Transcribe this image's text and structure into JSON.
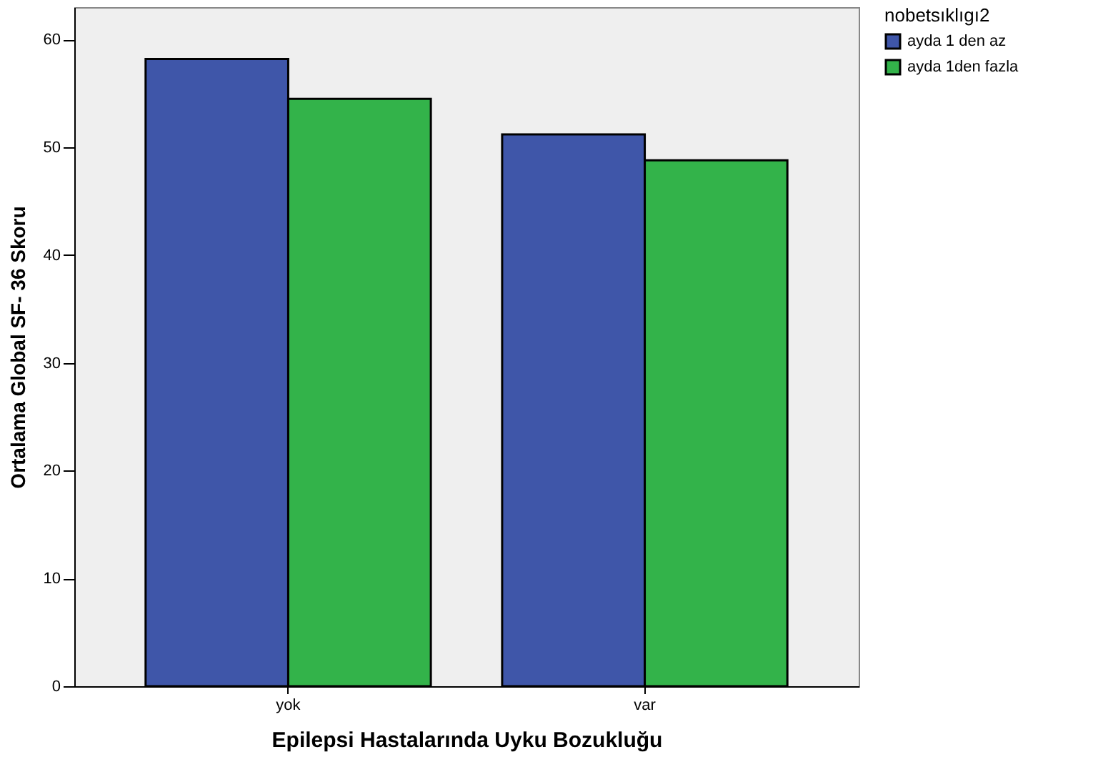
{
  "chart_data": {
    "type": "bar",
    "xlabel": "Epilepsi Hastalarında Uyku Bozukluğu",
    "ylabel": "Ortalama Global SF- 36 Skoru",
    "legend_title": "nobetsıklıgı2",
    "categories": [
      "yok",
      "var"
    ],
    "series": [
      {
        "name": "ayda 1 den az",
        "color": "#3f56a9",
        "values": [
          58.2,
          51.2
        ]
      },
      {
        "name": "ayda 1den fazla",
        "color": "#33b34a",
        "values": [
          54.5,
          48.8
        ]
      }
    ],
    "ylim": [
      0,
      63
    ],
    "yticks": [
      0,
      10,
      20,
      30,
      40,
      50,
      60
    ],
    "grid": false,
    "legend": "top right"
  }
}
